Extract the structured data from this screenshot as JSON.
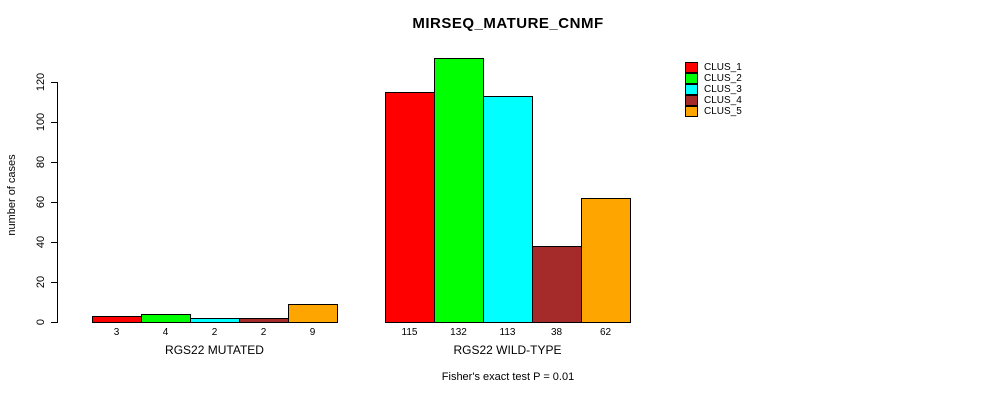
{
  "title": "MIRSEQ_MATURE_CNMF",
  "y_axis": {
    "label": "number of cases",
    "ticks": [
      0,
      20,
      40,
      60,
      80,
      100,
      120
    ]
  },
  "footer": "Fisher's exact test P = 0.01",
  "legend": {
    "items": [
      {
        "label": "CLUS_1",
        "color": "#ff0000"
      },
      {
        "label": "CLUS_2",
        "color": "#00ff00"
      },
      {
        "label": "CLUS_3",
        "color": "#00ffff"
      },
      {
        "label": "CLUS_4",
        "color": "#a52a2a"
      },
      {
        "label": "CLUS_5",
        "color": "#ffa500"
      }
    ]
  },
  "chart_data": {
    "type": "bar",
    "title": "MIRSEQ_MATURE_CNMF",
    "ylabel": "number of cases",
    "ylim": [
      0,
      135
    ],
    "yticks": [
      0,
      20,
      40,
      60,
      80,
      100,
      120
    ],
    "grid": false,
    "legend_position": "right",
    "categories": [
      "RGS22 MUTATED",
      "RGS22 WILD-TYPE"
    ],
    "series": [
      {
        "name": "CLUS_1",
        "color": "#ff0000",
        "values": [
          3,
          115
        ]
      },
      {
        "name": "CLUS_2",
        "color": "#00ff00",
        "values": [
          4,
          132
        ]
      },
      {
        "name": "CLUS_3",
        "color": "#00ffff",
        "values": [
          2,
          113
        ]
      },
      {
        "name": "CLUS_4",
        "color": "#a52a2a",
        "values": [
          2,
          38
        ]
      },
      {
        "name": "CLUS_5",
        "color": "#ffa500",
        "values": [
          9,
          62
        ]
      }
    ],
    "bar_value_labels": [
      [
        3,
        4,
        2,
        2,
        9
      ],
      [
        115,
        132,
        113,
        38,
        62
      ]
    ],
    "annotation": "Fisher's exact test P = 0.01"
  }
}
